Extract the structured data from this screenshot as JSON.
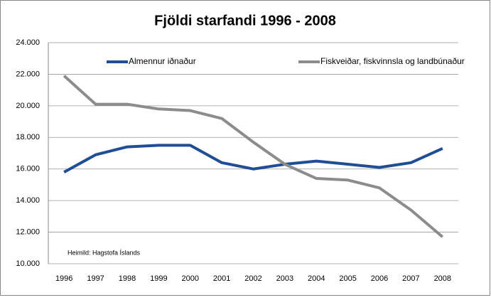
{
  "chart_data": {
    "type": "line",
    "title": "Fjöldi starfandi 1996 - 2008",
    "categories": [
      "1996",
      "1997",
      "1998",
      "1999",
      "2000",
      "2001",
      "2002",
      "2003",
      "2004",
      "2005",
      "2006",
      "2007",
      "2008"
    ],
    "series": [
      {
        "name": "Almennur iðnaður",
        "color": "#1f4e96",
        "values": [
          15800,
          16900,
          17400,
          17500,
          17500,
          16400,
          16000,
          16300,
          16500,
          16300,
          16100,
          16400,
          17300
        ]
      },
      {
        "name": "Fiskveiðar, fiskvinnsla og landbúnaður",
        "color": "#8c8c8c",
        "values": [
          21900,
          20100,
          20100,
          19800,
          19700,
          19200,
          17700,
          16300,
          15400,
          15300,
          14800,
          13400,
          11700
        ]
      }
    ],
    "ylim": [
      10000,
      24000
    ],
    "yticks": [
      {
        "value": 10000,
        "label": "10.000"
      },
      {
        "value": 12000,
        "label": "12.000"
      },
      {
        "value": 14000,
        "label": "14.000"
      },
      {
        "value": 16000,
        "label": "16.000"
      },
      {
        "value": 18000,
        "label": "18.000"
      },
      {
        "value": 20000,
        "label": "20.000"
      },
      {
        "value": 22000,
        "label": "22.000"
      },
      {
        "value": 24000,
        "label": "24.000"
      }
    ],
    "grid": true,
    "legend": "top",
    "annotation": "Heimild: Hagstofa Íslands"
  }
}
